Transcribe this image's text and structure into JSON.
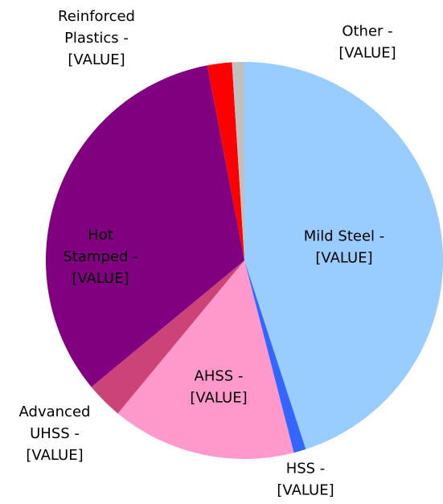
{
  "chart_data": {
    "type": "pie",
    "labels": [
      [
        "Mild Steel -",
        "[VALUE]"
      ],
      [
        "HSS -",
        "[VALUE]"
      ],
      [
        "AHSS -",
        "[VALUE]"
      ],
      [
        "Advanced",
        "UHSS -",
        "[VALUE]"
      ],
      [
        "Hot",
        "Stamped -",
        "[VALUE]"
      ],
      [
        "Reinforced",
        "Plastics -",
        "[VALUE]"
      ],
      [
        "Other -",
        "[VALUE]"
      ]
    ],
    "values": [
      45,
      1,
      15,
      3,
      33,
      2,
      1
    ],
    "colors": [
      "#99ccff",
      "#3366ff",
      "#ff99cc",
      "#cc4477",
      "#800080",
      "#ff0000",
      "#c0c0c0"
    ]
  }
}
